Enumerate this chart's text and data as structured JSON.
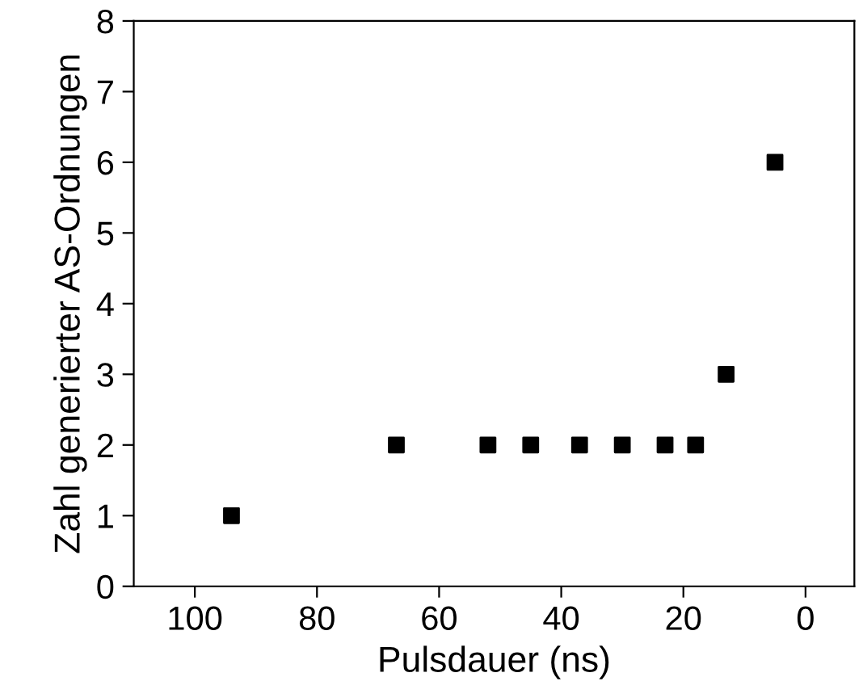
{
  "chart_data": {
    "type": "scatter",
    "xlabel": "Pulsdauer (ns)",
    "ylabel": "Zahl generierter AS-Ordnungen",
    "x": [
      94,
      67,
      52,
      45,
      37,
      30,
      23,
      18,
      13,
      5
    ],
    "values": [
      1,
      2,
      2,
      2,
      2,
      2,
      2,
      2,
      3,
      6
    ],
    "color": "#000000",
    "marker": "square",
    "xlim": [
      110,
      -8
    ],
    "xticks": [
      100,
      80,
      60,
      40,
      20,
      0
    ],
    "ylim": [
      0,
      8
    ],
    "yticks": [
      0,
      1,
      2,
      3,
      4,
      5,
      6,
      7,
      8
    ],
    "grid": false,
    "legend": false
  }
}
